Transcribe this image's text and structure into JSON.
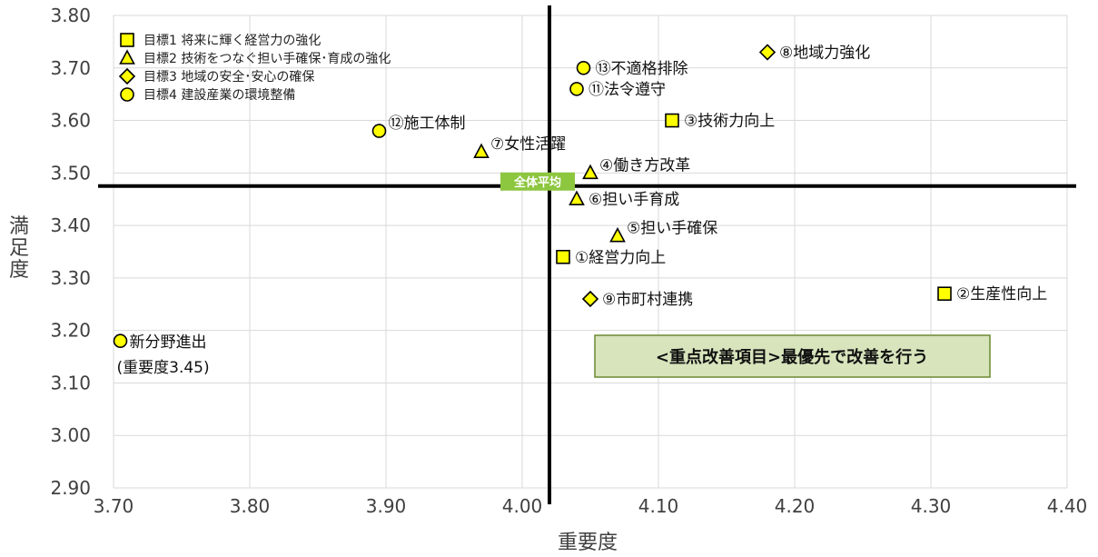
{
  "chart_data": {
    "type": "scatter",
    "xlabel": "重要度",
    "ylabel": "満足度",
    "xlim": [
      3.7,
      4.4
    ],
    "ylim": [
      2.9,
      3.8
    ],
    "xticks": [
      "3.70",
      "3.80",
      "3.90",
      "4.00",
      "4.10",
      "4.20",
      "4.30",
      "4.40"
    ],
    "yticks": [
      "2.90",
      "3.00",
      "3.10",
      "3.20",
      "3.30",
      "3.40",
      "3.50",
      "3.60",
      "3.70",
      "3.80"
    ],
    "grid": true,
    "average": {
      "x": 4.02,
      "y": 3.475,
      "label": "全体平均",
      "color": "#8dc63f"
    },
    "legend": {
      "placement": "top-left",
      "entries": [
        {
          "marker": "square",
          "label": "目標1 将来に輝く経営力の強化"
        },
        {
          "marker": "triangle",
          "label": "目標2 技術をつなぐ担い手確保･育成の強化"
        },
        {
          "marker": "diamond",
          "label": "目標3 地域の安全･安心の確保"
        },
        {
          "marker": "circle",
          "label": "目標4 建設産業の環境整備"
        }
      ]
    },
    "marker_fill": "#ffff00",
    "marker_stroke": "#000000",
    "series": [
      {
        "name": "目標1 将来に輝く経営力の強化",
        "marker": "square",
        "points": [
          {
            "label": "①経営力向上",
            "x": 4.03,
            "y": 3.34,
            "side": "right"
          },
          {
            "label": "②生産性向上",
            "x": 4.31,
            "y": 3.27,
            "side": "right"
          },
          {
            "label": "③技術力向上",
            "x": 4.11,
            "y": 3.6,
            "side": "right"
          }
        ]
      },
      {
        "name": "目標2 技術をつなぐ担い手確保･育成の強化",
        "marker": "triangle",
        "points": [
          {
            "label": "④働き方改革",
            "x": 4.05,
            "y": 3.5,
            "side": "upper-right"
          },
          {
            "label": "⑤担い手確保",
            "x": 4.07,
            "y": 3.38,
            "side": "upper-right"
          },
          {
            "label": "⑥担い手育成",
            "x": 4.04,
            "y": 3.45,
            "side": "right"
          },
          {
            "label": "⑦女性活躍",
            "x": 3.97,
            "y": 3.54,
            "side": "upper-right"
          }
        ]
      },
      {
        "name": "目標3 地域の安全･安心の確保",
        "marker": "diamond",
        "points": [
          {
            "label": "⑧地域力強化",
            "x": 4.18,
            "y": 3.73,
            "side": "right"
          },
          {
            "label": "⑨市町村連携",
            "x": 4.05,
            "y": 3.26,
            "side": "right"
          }
        ]
      },
      {
        "name": "目標4 建設産業の環境整備",
        "marker": "circle",
        "points": [
          {
            "label": "⑪法令遵守",
            "x": 4.04,
            "y": 3.66,
            "side": "right"
          },
          {
            "label": "⑫施工体制",
            "x": 3.895,
            "y": 3.58,
            "side": "upper-right"
          },
          {
            "label": "⑬不適格排除",
            "x": 4.045,
            "y": 3.7,
            "side": "right"
          },
          {
            "label": "新分野進出",
            "x": 3.705,
            "y": 3.18,
            "side": "below-right",
            "sublabel": "(重要度3.45)"
          }
        ]
      }
    ],
    "annotation": {
      "text": "<重点改善項目>最優先で改善を行う",
      "fill": "#d7e4bc",
      "stroke": "#6a8a30"
    }
  }
}
